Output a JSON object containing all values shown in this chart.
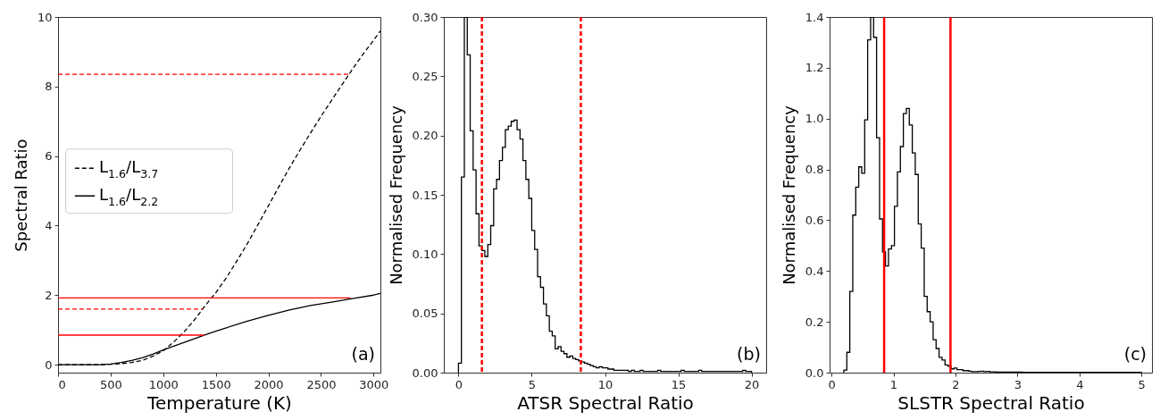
{
  "chart_data": [
    {
      "type": "line",
      "xlabel": "Temperature (K)",
      "ylabel": "Spectral Ratio",
      "xlim": [
        0,
        3065
      ],
      "ylim": [
        -0.23,
        10
      ],
      "xticks": [
        0,
        500,
        1000,
        1500,
        2000,
        2500,
        3000
      ],
      "yticks": [
        0,
        2,
        4,
        6,
        8,
        10
      ],
      "legend": "left",
      "annotations": [
        "(a)"
      ],
      "series": [
        {
          "name": "L$_{1.6}$/L$_{3.7}$",
          "color": "#000000",
          "line_style": "dashed",
          "x": [
            0,
            400,
            500,
            600,
            700,
            800,
            900,
            1000,
            1100,
            1200,
            1300,
            1400,
            1500,
            1600,
            1700,
            1800,
            1900,
            2000,
            2100,
            2200,
            2300,
            2400,
            2500,
            2600,
            2700,
            2800,
            2900,
            3000,
            3065
          ],
          "values": [
            0,
            0,
            0.01,
            0.03,
            0.06,
            0.12,
            0.24,
            0.4,
            0.65,
            0.95,
            1.3,
            1.7,
            2.07,
            2.5,
            2.98,
            3.48,
            4.02,
            4.57,
            5.12,
            5.66,
            6.17,
            6.66,
            7.14,
            7.6,
            8.05,
            8.5,
            8.93,
            9.33,
            9.6
          ]
        },
        {
          "name": "L$_{1.6}$/L$_{2.2}$",
          "color": "#000000",
          "line_style": "solid",
          "x": [
            0,
            400,
            500,
            600,
            700,
            800,
            900,
            1000,
            1100,
            1200,
            1300,
            1400,
            1500,
            1600,
            1800,
            2000,
            2200,
            2400,
            2600,
            2800,
            3000,
            3065
          ],
          "values": [
            0,
            0,
            0.02,
            0.06,
            0.12,
            0.2,
            0.3,
            0.42,
            0.53,
            0.64,
            0.75,
            0.86,
            0.96,
            1.06,
            1.25,
            1.42,
            1.57,
            1.7,
            1.8,
            1.9,
            2.0,
            2.05
          ]
        },
        {
          "color": "#ff0000",
          "line_style": "dashed",
          "x": [
            0,
            2760
          ],
          "values": [
            8.35,
            8.35
          ]
        },
        {
          "color": "#ff0000",
          "line_style": "dashed",
          "x": [
            0,
            1380
          ],
          "values": [
            1.6,
            1.6
          ]
        },
        {
          "color": "#ff0000",
          "line_style": "solid",
          "x": [
            0,
            2780
          ],
          "values": [
            1.92,
            1.92
          ]
        },
        {
          "color": "#ff0000",
          "line_style": "solid",
          "x": [
            0,
            1390
          ],
          "values": [
            0.85,
            0.85
          ]
        }
      ]
    },
    {
      "type": "histogram",
      "xlabel": "ATSR Spectral Ratio",
      "ylabel": "Normalised Frequency",
      "xlim": [
        -1,
        21
      ],
      "ylim": [
        0,
        0.3
      ],
      "xticks": [
        0,
        5,
        10,
        15,
        20
      ],
      "yticks": [
        {
          "value": 0,
          "label": "0.00"
        },
        {
          "value": 0.05,
          "label": "0.05"
        },
        {
          "value": 0.1,
          "label": "0.10"
        },
        {
          "value": 0.15,
          "label": "0.15"
        },
        {
          "value": 0.2,
          "label": "0.20"
        },
        {
          "value": 0.25,
          "label": "0.25"
        },
        {
          "value": 0.3,
          "label": "0.30"
        }
      ],
      "color": "#000000",
      "annotations": [
        "(b)"
      ],
      "ref_lines": [
        {
          "axis": "x",
          "value": 1.6,
          "color": "#ff0000",
          "line_style": "dashed"
        },
        {
          "axis": "x",
          "value": 8.35,
          "color": "#ff0000",
          "line_style": "dashed"
        }
      ],
      "bins": [
        0,
        0.2,
        0.4,
        0.6,
        0.8,
        1,
        1.2,
        1.4,
        1.6,
        1.8,
        2,
        2.2,
        2.4,
        2.6,
        2.8,
        3,
        3.2,
        3.4,
        3.6,
        3.8,
        4,
        4.2,
        4.4,
        4.6,
        4.8,
        5,
        5.2,
        5.4,
        5.6,
        5.8,
        6,
        6.2,
        6.4,
        6.6,
        6.8,
        7,
        7.2,
        7.4,
        7.6,
        7.8,
        8,
        8.2,
        8.4,
        8.6,
        8.8,
        9,
        9.2,
        9.4,
        9.6,
        9.8,
        10,
        10.2,
        10.4,
        10.6,
        10.8,
        11,
        11.2,
        11.4,
        11.6,
        11.8,
        12,
        12.2,
        12.4,
        12.6,
        12.8,
        13,
        13.2,
        13.4,
        13.6,
        13.8,
        14,
        14.2,
        14.4,
        14.6,
        14.8,
        15,
        15.2,
        15.4,
        15.6,
        15.8,
        16,
        16.2,
        16.4,
        16.6,
        16.8,
        17,
        17.2,
        17.4,
        17.6,
        17.8,
        18,
        18.2,
        18.4,
        18.6,
        18.8,
        19,
        19.2,
        19.4,
        19.6,
        19.8,
        20
      ],
      "values": [
        0.008,
        0.165,
        0.3,
        0.268,
        0.204,
        0.171,
        0.134,
        0.107,
        0.103,
        0.098,
        0.108,
        0.124,
        0.155,
        0.163,
        0.179,
        0.19,
        0.205,
        0.208,
        0.212,
        0.213,
        0.205,
        0.197,
        0.179,
        0.163,
        0.147,
        0.12,
        0.104,
        0.081,
        0.072,
        0.058,
        0.048,
        0.035,
        0.031,
        0.02,
        0.022,
        0.018,
        0.016,
        0.013,
        0.014,
        0.012,
        0.011,
        0.01,
        0.009,
        0.008,
        0.007,
        0.006,
        0.005,
        0.004,
        0.005,
        0.004,
        0.004,
        0.003,
        0.003,
        0.002,
        0.002,
        0.002,
        0.002,
        0.002,
        0.001,
        0.002,
        0.001,
        0.001,
        0.002,
        0.001,
        0.001,
        0.001,
        0.001,
        0.001,
        0.002,
        0.001,
        0.001,
        0.001,
        0.001,
        0.001,
        0.001,
        0.001,
        0.002,
        0.001,
        0.001,
        0.001,
        0.001,
        0.001,
        0.002,
        0.001,
        0.001,
        0.001,
        0.001,
        0.001,
        0.001,
        0.001,
        0.001,
        0.001,
        0.001,
        0.001,
        0.001,
        0.001,
        0.001,
        0.002,
        0.001,
        0.001
      ]
    },
    {
      "type": "histogram",
      "xlabel": "SLSTR Spectral Ratio",
      "ylabel": "Normalised Frequency",
      "xlim": [
        -0.03,
        5.17
      ],
      "ylim": [
        0,
        1.4
      ],
      "xticks": [
        0,
        1,
        2,
        3,
        4,
        5
      ],
      "yticks": [
        {
          "value": 0,
          "label": "0.0"
        },
        {
          "value": 0.2,
          "label": "0.2"
        },
        {
          "value": 0.4,
          "label": "0.4"
        },
        {
          "value": 0.6,
          "label": "0.6"
        },
        {
          "value": 0.8,
          "label": "0.8"
        },
        {
          "value": 1,
          "label": "1.0"
        },
        {
          "value": 1.2,
          "label": "1.2"
        },
        {
          "value": 1.4,
          "label": "1.4"
        }
      ],
      "color": "#000000",
      "annotations": [
        "(c)"
      ],
      "ref_lines": [
        {
          "axis": "x",
          "value": 0.85,
          "color": "#ff0000",
          "line_style": "solid"
        },
        {
          "axis": "x",
          "value": 1.92,
          "color": "#ff0000",
          "line_style": "solid"
        }
      ],
      "bins": [
        0.2,
        0.248,
        0.296,
        0.344,
        0.392,
        0.44,
        0.488,
        0.536,
        0.584,
        0.632,
        0.68,
        0.728,
        0.776,
        0.824,
        0.872,
        0.92,
        0.968,
        1.016,
        1.064,
        1.112,
        1.16,
        1.208,
        1.256,
        1.304,
        1.352,
        1.4,
        1.448,
        1.496,
        1.544,
        1.592,
        1.64,
        1.688,
        1.736,
        1.784,
        1.832,
        1.88,
        1.928,
        1.976,
        2.024,
        2.072,
        2.12,
        2.168,
        2.216,
        2.264,
        2.312,
        2.36,
        2.408,
        2.456,
        2.504,
        2.552,
        2.6,
        2.648,
        2.696,
        2.744,
        2.792,
        2.84,
        2.888,
        2.936,
        2.984,
        3.032,
        3.08,
        3.128,
        3.176,
        3.224,
        3.272,
        3.32,
        3.368,
        3.416,
        3.464,
        3.512,
        3.56,
        3.608,
        3.656,
        3.704,
        3.752,
        3.8,
        3.848,
        3.896,
        3.944,
        3.992,
        4.04,
        4.088,
        4.136,
        4.184,
        4.232,
        4.28,
        4.328,
        4.376,
        4.424,
        4.472,
        4.52,
        4.568,
        4.616,
        4.664,
        4.712,
        4.76,
        4.808,
        4.856,
        4.904,
        4.952,
        5.0
      ],
      "values": [
        0.01,
        0.08,
        0.32,
        0.62,
        0.73,
        0.81,
        0.785,
        0.995,
        1.31,
        1.4,
        1.32,
        0.925,
        0.605,
        0.475,
        0.42,
        0.487,
        0.5,
        0.655,
        0.79,
        0.89,
        1.02,
        1.04,
        0.975,
        0.865,
        0.78,
        0.585,
        0.49,
        0.3,
        0.24,
        0.2,
        0.13,
        0.095,
        0.06,
        0.05,
        0.03,
        0.025,
        0.015,
        0.018,
        0.012,
        0.012,
        0.008,
        0.008,
        0.006,
        0.004,
        0.004,
        0.005,
        0.006,
        0.004,
        0.005,
        0.003,
        0.003,
        0.002,
        0.002,
        0.002,
        0.002,
        0.002,
        0.002,
        0.002,
        0.002,
        0.002,
        0.001,
        0.001,
        0.001,
        0.001,
        0.001,
        0.001,
        0.001,
        0.001,
        0.001,
        0.001,
        0.001,
        0.001,
        0.001,
        0.001,
        0.001,
        0.001,
        0.001,
        0.001,
        0.001,
        0.001,
        0.001,
        0.001,
        0.001,
        0.001,
        0.001,
        0.001,
        0.001,
        0.001,
        0.001,
        0.001,
        0.001,
        0.001,
        0.001,
        0.001,
        0.001,
        0.001,
        0.001,
        0.001,
        0.001,
        0.001
      ]
    }
  ]
}
